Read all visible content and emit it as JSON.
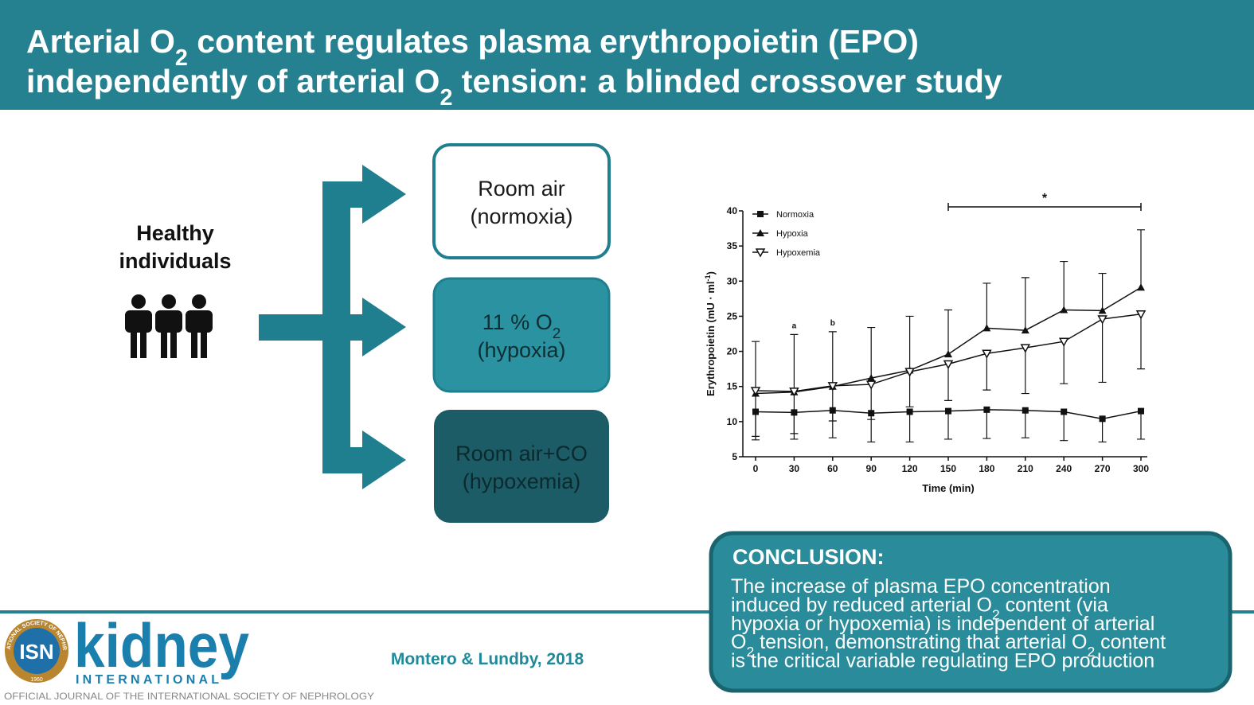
{
  "header": {
    "title": [
      [
        "Arterial O",
        "2",
        " content regulates plasma erythropoietin (EPO)"
      ],
      [
        "independently of arterial O",
        "2",
        " tension: a blinded crossover study"
      ]
    ]
  },
  "diagram": {
    "group": [
      "Healthy",
      "individuals"
    ],
    "boxes": [
      {
        "lines": [
          [
            "Room air"
          ],
          [
            "(normoxia)"
          ]
        ]
      },
      {
        "lines": [
          [
            "11 % O",
            "2"
          ],
          [
            "(hypoxia)"
          ]
        ]
      },
      {
        "lines": [
          [
            "Room air+CO"
          ],
          [
            "(hypoxemia)"
          ]
        ]
      }
    ]
  },
  "chart_data": {
    "type": "line",
    "x_label": "Time (min)",
    "y_label": [
      "Erythropoietin (mU · ml",
      "-1",
      ")"
    ],
    "x": [
      0,
      30,
      60,
      90,
      120,
      150,
      180,
      210,
      240,
      270,
      300
    ],
    "xlim": [
      0,
      300
    ],
    "xticks": [
      0,
      30,
      60,
      90,
      120,
      150,
      180,
      210,
      240,
      270,
      300
    ],
    "ylim": [
      5,
      40
    ],
    "yticks": [
      5,
      10,
      15,
      20,
      25,
      30,
      35,
      40
    ],
    "series": [
      {
        "name": "Normoxia",
        "color": "#111111",
        "marker": "square",
        "error_direction": "down",
        "values": [
          11.4,
          11.3,
          11.6,
          11.2,
          11.4,
          11.5,
          11.7,
          11.6,
          11.4,
          10.4,
          11.5
        ],
        "errors": [
          4.0,
          3.8,
          3.9,
          4.1,
          4.3,
          4.0,
          4.1,
          3.9,
          4.1,
          3.3,
          4.0
        ]
      },
      {
        "name": "Hypoxia",
        "color": "#111111",
        "marker": "triangle",
        "error_direction": "up",
        "values": [
          14.0,
          14.2,
          15.0,
          16.2,
          17.3,
          19.6,
          23.3,
          23.0,
          25.9,
          25.8,
          29.1
        ],
        "errors": [
          7.4,
          8.2,
          7.8,
          7.2,
          7.7,
          6.3,
          6.4,
          7.5,
          6.9,
          5.3,
          8.2
        ]
      },
      {
        "name": "Hypoxemia",
        "color": "#111111",
        "marker": "triangle-open",
        "error_direction": "down",
        "values": [
          14.4,
          14.3,
          15.1,
          15.3,
          17.1,
          18.2,
          19.7,
          20.5,
          21.4,
          24.6,
          25.3
        ],
        "errors": [
          6.5,
          6.0,
          5.0,
          5.0,
          5.0,
          5.2,
          5.2,
          6.5,
          6.0,
          9.0,
          7.8
        ]
      }
    ],
    "annotations": [
      {
        "text": "a",
        "x": 30
      },
      {
        "text": "b",
        "x": 60
      }
    ],
    "bracket": {
      "text": "*",
      "x": [
        150,
        300
      ]
    },
    "legend": "top-left"
  },
  "conclusion": {
    "heading": "CONCLUSION:",
    "lines": [
      [
        "The increase of plasma EPO concentration"
      ],
      [
        "induced by reduced arterial O",
        "2",
        " content (via"
      ],
      [
        "hypoxia or hypoxemia) is independent of arterial"
      ],
      [
        "O",
        "2",
        " tension, demonstrating that arterial O",
        "2",
        " content"
      ],
      [
        "is the critical variable regulating EPO production"
      ]
    ]
  },
  "footer": {
    "citation": "Montero & Lundby, 2018",
    "logo_abbr": "ISN",
    "logo_ring": "INTERNATIONAL SOCIETY OF NEPHROLOGY",
    "logo_year": "1960",
    "journal": "kidney",
    "journal_sub": "INTERNATIONAL",
    "tagline": "OFFICIAL JOURNAL OF THE INTERNATIONAL SOCIETY OF NEPHROLOGY"
  }
}
